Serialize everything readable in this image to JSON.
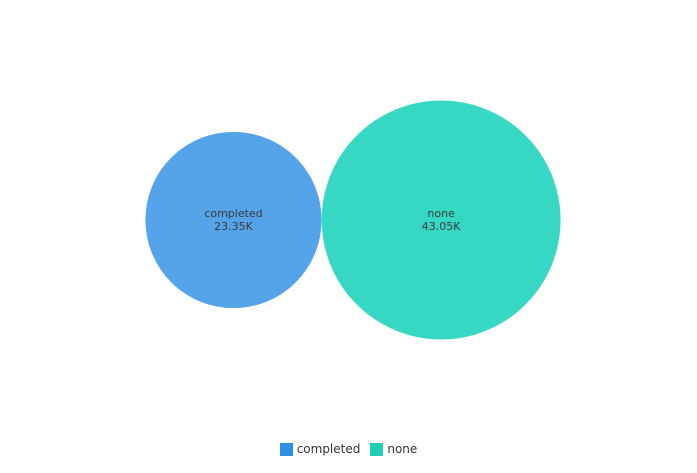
{
  "chart_data": {
    "type": "bubble",
    "series": [
      {
        "name": "completed",
        "value": 23350,
        "value_label": "23.35K",
        "color": "#55A3E8"
      },
      {
        "name": "none",
        "value": 43050,
        "value_label": "43.05K",
        "color": "#36D8C3"
      }
    ],
    "legend": {
      "position": "bottom-center",
      "items": [
        {
          "label": "completed",
          "color": "#2E8FE0"
        },
        {
          "label": "none",
          "color": "#1FCFB5"
        }
      ]
    }
  }
}
